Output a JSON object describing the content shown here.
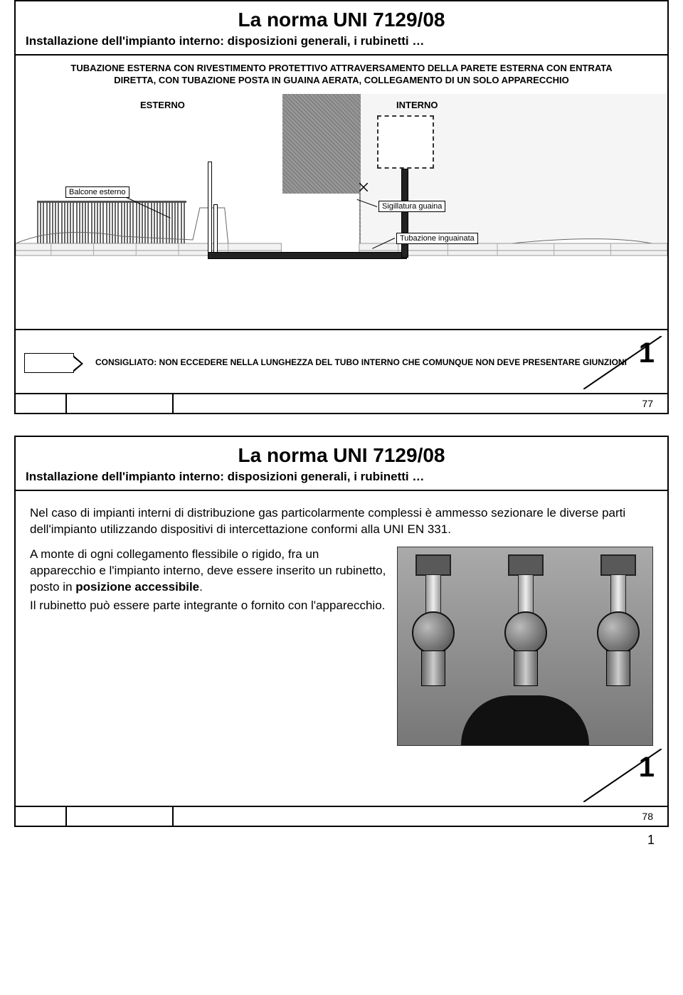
{
  "slide1": {
    "title": "La norma UNI 7129/08",
    "subtitle": "Installazione dell'impianto interno: disposizioni generali, i rubinetti …",
    "caption": "TUBAZIONE ESTERNA CON RIVESTIMENTO PROTETTIVO ATTRAVERSAMENTO DELLA PARETE ESTERNA CON ENTRATA DIRETTA, CON TUBAZIONE POSTA IN GUAINA AERATA, COLLEGAMENTO DI UN SOLO APPARECCHIO",
    "esterno": "ESTERNO",
    "interno": "INTERNO",
    "balcone": "Balcone esterno",
    "sigillatura": "Sigillatura guaina",
    "tubazione": "Tubazione inguainata",
    "note": "CONSIGLIATO: NON ECCEDERE NELLA LUNGHEZZA DEL TUBO INTERNO CHE COMUNQUE NON DEVE PRESENTARE GIUNZIONI",
    "big": "1",
    "pagenum": "77"
  },
  "slide2": {
    "title": "La norma UNI 7129/08",
    "subtitle": "Installazione dell'impianto interno: disposizioni generali, i rubinetti …",
    "para1": "Nel caso di impianti interni di distribuzione gas particolarmente complessi è ammesso sezionare le diverse parti dell'impianto utilizzando dispositivi di intercettazione conformi alla UNI EN 331.",
    "para2a": "A monte di ogni collegamento flessibile o rigido, fra  un apparecchio e l'impianto interno, deve essere inserito un rubinetto, posto in ",
    "para2b": "posizione accessibile",
    "para2c": ".",
    "para3": "Il rubinetto può essere parte integrante o fornito con l'apparecchio.",
    "big": "1",
    "pagenum": "78"
  },
  "bottomPage": "1"
}
